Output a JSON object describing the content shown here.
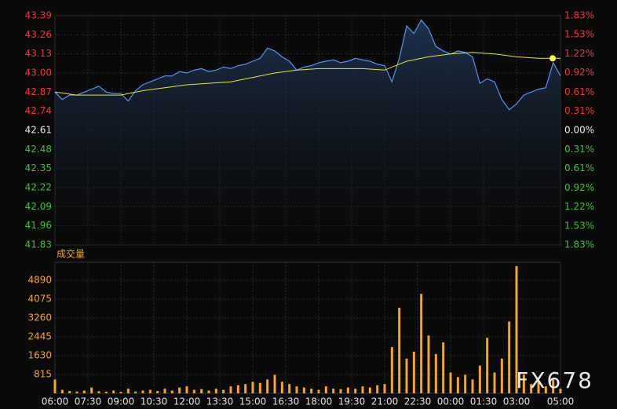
{
  "chart_data": [
    {
      "type": "line",
      "xlim": [
        0,
        1380
      ],
      "ylim": [
        41.83,
        43.39
      ],
      "yticks": [
        43.39,
        43.26,
        43.13,
        {
          "value": 43,
          "label": "43.00"
        },
        42.87,
        42.74,
        42.61,
        42.48,
        42.35,
        42.22,
        42.09,
        41.96,
        41.83
      ],
      "y2lim": [
        -1.83,
        1.83
      ],
      "y2ticks": [
        {
          "value": 1.83,
          "label": "1.83%"
        },
        {
          "value": 1.53,
          "label": "1.53%"
        },
        {
          "value": 1.22,
          "label": "1.22%"
        },
        {
          "value": 0.92,
          "label": "0.92%"
        },
        {
          "value": 0.61,
          "label": "0.61%"
        },
        {
          "value": 0.31,
          "label": "0.31%"
        },
        {
          "value": 0,
          "label": "0.00%"
        },
        {
          "value": -0.31,
          "label": "0.31%"
        },
        {
          "value": -0.61,
          "label": "0.61%"
        },
        {
          "value": -0.92,
          "label": "0.92%"
        },
        {
          "value": -1.22,
          "label": "1.22%"
        },
        {
          "value": -1.53,
          "label": "1.53%"
        },
        {
          "value": -1.83,
          "label": "1.83%"
        }
      ],
      "up_color": "#f0343c",
      "down_color": "#3fbf3f",
      "flat_color": "#e8e8e8",
      "series": [
        {
          "color": "#5b8ff9",
          "x": [
            0,
            20,
            40,
            60,
            80,
            100,
            120,
            140,
            160,
            180,
            200,
            220,
            240,
            260,
            280,
            300,
            320,
            340,
            360,
            380,
            400,
            420,
            440,
            460,
            480,
            500,
            520,
            540,
            560,
            580,
            600,
            620,
            640,
            660,
            680,
            700,
            720,
            740,
            760,
            780,
            800,
            820,
            840,
            860,
            880,
            900,
            920,
            940,
            960,
            980,
            1000,
            1020,
            1040,
            1060,
            1080,
            1100,
            1120,
            1140,
            1160,
            1180,
            1200,
            1220,
            1240,
            1260,
            1280,
            1300,
            1320,
            1340,
            1360,
            1380
          ],
          "values": [
            42.87,
            42.82,
            42.85,
            42.85,
            42.87,
            42.89,
            42.91,
            42.87,
            42.86,
            42.86,
            42.81,
            42.88,
            42.92,
            42.94,
            42.96,
            42.98,
            42.98,
            43.01,
            43.0,
            43.02,
            43.03,
            43.01,
            43.02,
            43.04,
            43.03,
            43.05,
            43.06,
            43.08,
            43.1,
            43.17,
            43.15,
            43.11,
            43.08,
            43.02,
            43.04,
            43.05,
            43.07,
            43.08,
            43.09,
            43.07,
            43.08,
            43.1,
            43.09,
            43.08,
            43.06,
            43.05,
            42.94,
            43.1,
            43.32,
            43.27,
            43.36,
            43.3,
            43.18,
            43.15,
            43.13,
            43.15,
            43.14,
            43.11,
            42.93,
            42.96,
            42.94,
            42.82,
            42.75,
            42.79,
            42.85,
            42.87,
            42.89,
            42.9,
            43.07,
            42.98
          ]
        },
        {
          "color": "#e6e62e",
          "x": [
            0,
            60,
            120,
            180,
            240,
            300,
            360,
            420,
            480,
            540,
            600,
            660,
            720,
            780,
            840,
            900,
            960,
            1020,
            1080,
            1140,
            1200,
            1260,
            1320,
            1380
          ],
          "values": [
            42.87,
            42.85,
            42.85,
            42.85,
            42.88,
            42.9,
            42.92,
            42.93,
            42.94,
            42.97,
            43.0,
            43.02,
            43.03,
            43.03,
            43.03,
            43.02,
            43.08,
            43.11,
            43.13,
            43.14,
            43.13,
            43.11,
            43.1,
            43.1
          ]
        }
      ]
    },
    {
      "type": "bar",
      "title": "成交量",
      "watermark": "FX678",
      "color": "#f5a623",
      "xlim": [
        0,
        1380
      ],
      "ylim": [
        0,
        5670
      ],
      "yticks": [
        815,
        1630,
        2445,
        3260,
        4075,
        4890
      ],
      "xticks": [
        {
          "value": 0,
          "label": "06:00"
        },
        {
          "value": 90,
          "label": "07:30"
        },
        {
          "value": 180,
          "label": "09:00"
        },
        {
          "value": 270,
          "label": "10:30"
        },
        {
          "value": 360,
          "label": "12:00"
        },
        {
          "value": 450,
          "label": "13:30"
        },
        {
          "value": 540,
          "label": "15:00"
        },
        {
          "value": 630,
          "label": "16:30"
        },
        {
          "value": 720,
          "label": "18:00"
        },
        {
          "value": 810,
          "label": "19:30"
        },
        {
          "value": 900,
          "label": "21:00"
        },
        {
          "value": 990,
          "label": "22:30"
        },
        {
          "value": 1080,
          "label": "00:00"
        },
        {
          "value": 1170,
          "label": "01:30"
        },
        {
          "value": 1260,
          "label": "03:00"
        },
        {
          "value": 1380,
          "label": "05:00"
        }
      ],
      "x": [
        0,
        20,
        40,
        60,
        80,
        100,
        120,
        140,
        160,
        180,
        200,
        220,
        240,
        260,
        280,
        300,
        320,
        340,
        360,
        380,
        400,
        420,
        440,
        460,
        480,
        500,
        520,
        540,
        560,
        580,
        600,
        620,
        640,
        660,
        680,
        700,
        720,
        740,
        760,
        780,
        800,
        820,
        840,
        860,
        880,
        900,
        920,
        940,
        960,
        980,
        1000,
        1020,
        1040,
        1060,
        1080,
        1100,
        1120,
        1140,
        1160,
        1180,
        1200,
        1220,
        1240,
        1260,
        1280,
        1300,
        1320,
        1340,
        1360,
        1380
      ],
      "values": [
        600,
        150,
        100,
        80,
        120,
        250,
        90,
        70,
        120,
        60,
        200,
        80,
        120,
        150,
        100,
        200,
        120,
        250,
        300,
        150,
        180,
        120,
        200,
        150,
        300,
        350,
        400,
        500,
        450,
        600,
        800,
        500,
        400,
        300,
        250,
        200,
        150,
        300,
        200,
        180,
        250,
        200,
        300,
        250,
        350,
        400,
        2000,
        3700,
        1500,
        1800,
        4300,
        2500,
        1700,
        2200,
        900,
        700,
        800,
        600,
        1200,
        2400,
        900,
        1500,
        3100,
        5500,
        800,
        400,
        500,
        300,
        600,
        200
      ]
    }
  ]
}
